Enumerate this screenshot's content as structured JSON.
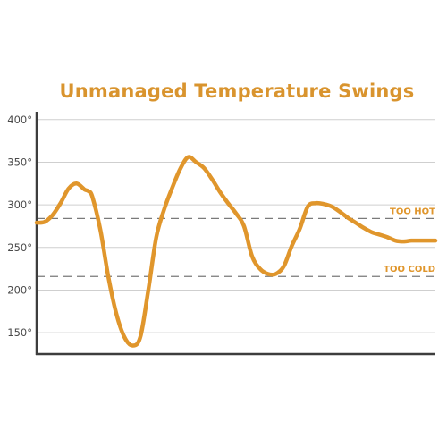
{
  "chart_data": {
    "type": "line",
    "title": "Unmanaged Temperature Swings",
    "xlabel": "",
    "ylabel": "",
    "ylim": [
      125,
      405
    ],
    "yticks": [
      150,
      200,
      250,
      300,
      350,
      400
    ],
    "ytick_labels": [
      "150°",
      "200°",
      "250°",
      "300°",
      "350°",
      "400°"
    ],
    "grid": true,
    "line_color": "#e0962c",
    "thresholds": [
      {
        "label": "TOO HOT",
        "value": 284,
        "color": "#e0962c"
      },
      {
        "label": "TOO COLD",
        "value": 216,
        "color": "#e0962c"
      }
    ],
    "x": [
      0,
      2,
      4,
      6,
      8,
      10,
      12,
      13,
      14,
      16,
      18,
      20,
      22,
      24,
      26,
      28,
      30,
      32,
      34,
      36,
      38,
      40,
      42,
      44,
      46,
      48,
      50,
      52,
      54,
      56,
      58,
      60,
      62,
      64,
      66,
      68,
      70,
      72,
      74,
      76,
      78,
      80,
      82,
      84,
      86,
      88,
      90,
      92,
      94,
      96,
      98,
      100
    ],
    "series": [
      {
        "values": [
          279,
          280,
          288,
          302,
          319,
          325,
          318,
          316,
          309,
          270,
          215,
          172,
          145,
          135,
          145,
          200,
          262,
          295,
          320,
          342,
          356,
          350,
          343,
          330,
          315,
          302,
          290,
          275,
          240,
          225,
          219,
          219,
          228,
          252,
          272,
          298,
          302,
          301,
          298,
          292,
          285,
          279,
          273,
          268,
          265,
          262,
          258,
          257,
          258,
          258,
          258,
          258
        ]
      }
    ]
  }
}
